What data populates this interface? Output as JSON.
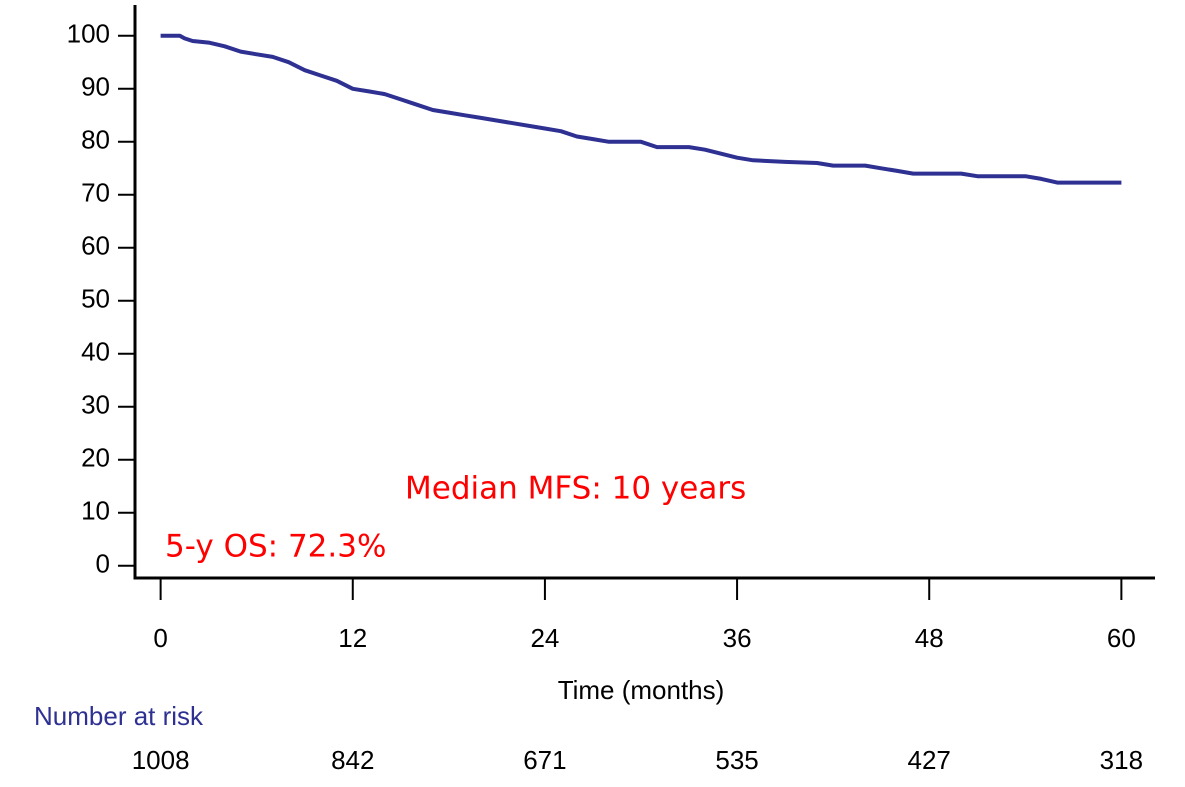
{
  "chart_data": {
    "type": "line",
    "x_label": "Time (months)",
    "xlim": [
      -1.6,
      62.1
    ],
    "ylim": [
      -2.3,
      105.8
    ],
    "xticks": [
      0,
      12,
      24,
      36,
      48,
      60
    ],
    "yticks": [
      0,
      10,
      20,
      30,
      40,
      50,
      60,
      70,
      80,
      90,
      100
    ],
    "series": [
      {
        "color": "#2e3192",
        "x": [
          0,
          1.2,
          1.5,
          2,
          3,
          4,
          5,
          6,
          7,
          8,
          9,
          10,
          11,
          12,
          13,
          14,
          15,
          16,
          17,
          18,
          19,
          20,
          22,
          24,
          25,
          26,
          27,
          28,
          30,
          31,
          33,
          34,
          36,
          37,
          39,
          41,
          42,
          44,
          45,
          46,
          47,
          50,
          51,
          54,
          55,
          56,
          60
        ],
        "values": [
          100,
          100,
          99.5,
          99,
          98.7,
          98,
          97,
          96.5,
          96,
          95,
          93.5,
          92.5,
          91.5,
          90,
          89.5,
          89,
          88,
          87,
          86,
          85.5,
          85,
          84.5,
          83.5,
          82.5,
          82,
          81,
          80.5,
          80,
          80,
          79,
          79,
          78.5,
          77,
          76.5,
          76.2,
          76,
          75.5,
          75.5,
          75,
          74.5,
          74,
          74,
          73.5,
          73.5,
          73,
          72.3,
          72.3
        ]
      }
    ],
    "annotations": [
      "Median MFS: 10 years",
      "5-y OS: 72.3%"
    ],
    "risk_table": {
      "title": "Number at risk",
      "values": [
        1008,
        842,
        671,
        535,
        427,
        318
      ]
    }
  }
}
